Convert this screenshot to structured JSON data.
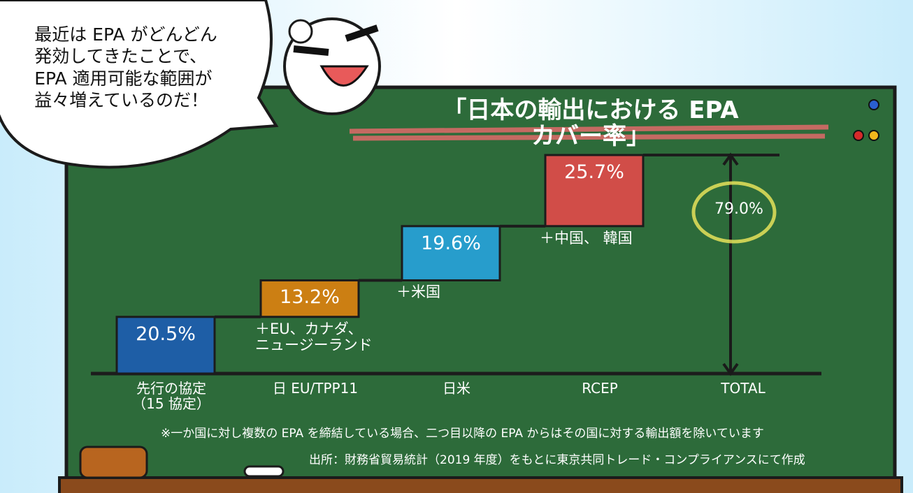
{
  "chart_data": {
    "type": "waterfall",
    "title": "「日本の輸出における EPA カバー率」",
    "categories": [
      "先行の協定\n（15 協定）",
      "日 EU/TPP11",
      "日米",
      "RCEP",
      "TOTAL"
    ],
    "values": [
      20.5,
      13.2,
      19.6,
      25.7,
      79.0
    ],
    "value_labels": [
      "20.5%",
      "13.2%",
      "19.6%",
      "25.7%",
      "79.0%"
    ],
    "step_labels": [
      null,
      "＋EU、カナダ、\nニュージーランド",
      "＋米国",
      "＋中国、 韓国",
      null
    ],
    "colors": [
      "#1d5db3",
      "#de8210",
      "#27a3dd",
      "#e34a4a",
      "#e6e25a"
    ]
  },
  "bubble": {
    "text": "最近は EPA がどんどん\n発効してきたことで、\nEPA 適用可能な範囲が\n益々増えているのだ！"
  },
  "notes": [
    "※一か国に対し複数の EPA を締結している場合、二つ目以降の EPA からはその国に対する輸出額を除いています",
    "出所：財務省貿易統計（2019 年度）をもとに東京共同トレード・コンプライアンスにて作成"
  ]
}
